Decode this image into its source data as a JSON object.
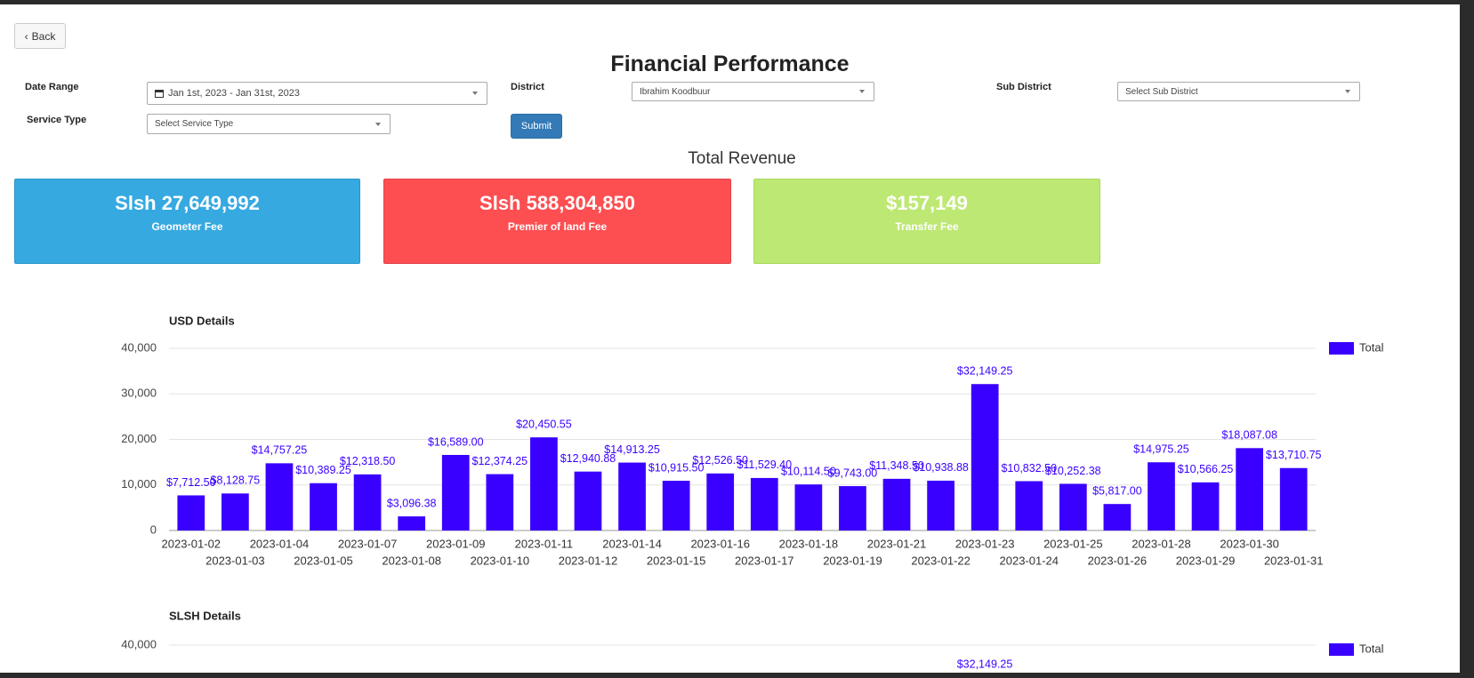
{
  "back_button": "Back",
  "title": "Financial Performance",
  "filters": {
    "date_range": {
      "label": "Date Range",
      "value": "Jan 1st, 2023 - Jan 31st, 2023"
    },
    "district": {
      "label": "District",
      "value": "Ibrahim Koodbuur"
    },
    "sub_district": {
      "label": "Sub District",
      "placeholder": "Select Sub District"
    },
    "service_type": {
      "label": "Service Type",
      "placeholder": "Select Service Type"
    },
    "submit": "Submit"
  },
  "revenue": {
    "title": "Total Revenue",
    "cards": [
      {
        "amount": "Slsh 27,649,992",
        "label": "Geometer Fee"
      },
      {
        "amount": "Slsh 588,304,850",
        "label": "Premier of land Fee"
      },
      {
        "amount": "$157,149",
        "label": "Transfer Fee"
      }
    ]
  },
  "chart_data": [
    {
      "type": "bar",
      "title": "USD Details",
      "categories": [
        "2023-01-02",
        "2023-01-03",
        "2023-01-04",
        "2023-01-05",
        "2023-01-07",
        "2023-01-08",
        "2023-01-09",
        "2023-01-10",
        "2023-01-11",
        "2023-01-12",
        "2023-01-14",
        "2023-01-15",
        "2023-01-16",
        "2023-01-17",
        "2023-01-18",
        "2023-01-19",
        "2023-01-21",
        "2023-01-22",
        "2023-01-23",
        "2023-01-24",
        "2023-01-25",
        "2023-01-26",
        "2023-01-28",
        "2023-01-29",
        "2023-01-30",
        "2023-01-31"
      ],
      "series": [
        {
          "name": "Total",
          "color": "#3a00ff",
          "values": [
            7712.5,
            8128.75,
            14757.25,
            10389.25,
            12318.5,
            3096.38,
            16589,
            12374.25,
            20450.55,
            12940.88,
            14913.25,
            10915.5,
            12526.5,
            11529.4,
            10114.5,
            9743,
            11348.5,
            10938.88,
            32149.25,
            10832.5,
            10252.38,
            5817,
            14975.25,
            10566.25,
            18087.08,
            13710.75
          ],
          "value_labels": [
            "$7,712.50",
            "$8,128.75",
            "$14,757.25",
            "$10,389.25",
            "$12,318.50",
            "$3,096.38",
            "$16,589.00",
            "$12,374.25",
            "$20,450.55",
            "$12,940.88",
            "$14,913.25",
            "$10,915.50",
            "$12,526.50",
            "$11,529.40",
            "$10,114.50",
            "$9,743.00",
            "$11,348.50",
            "$10,938.88",
            "$32,149.25",
            "$10,832.50",
            "$10,252.38",
            "$5,817.00",
            "$14,975.25",
            "$10,566.25",
            "$18,087.08",
            "$13,710.75"
          ]
        }
      ],
      "ylim": [
        0,
        40000
      ],
      "yticks": [
        0,
        {
          "value": 10000,
          "label": "10,000"
        },
        {
          "value": 20000,
          "label": "20,000"
        },
        {
          "value": 30000,
          "label": "30,000"
        },
        {
          "value": 40000,
          "label": "40,000"
        }
      ],
      "grid": true
    },
    {
      "type": "bar",
      "title": "SLSH Details",
      "series": [
        {
          "name": "Total",
          "color": "#3a00ff"
        }
      ],
      "yticks": [
        {
          "value": 40000,
          "label": "40,000"
        }
      ],
      "annotations": [
        "$32,149.25"
      ],
      "grid": true
    }
  ]
}
